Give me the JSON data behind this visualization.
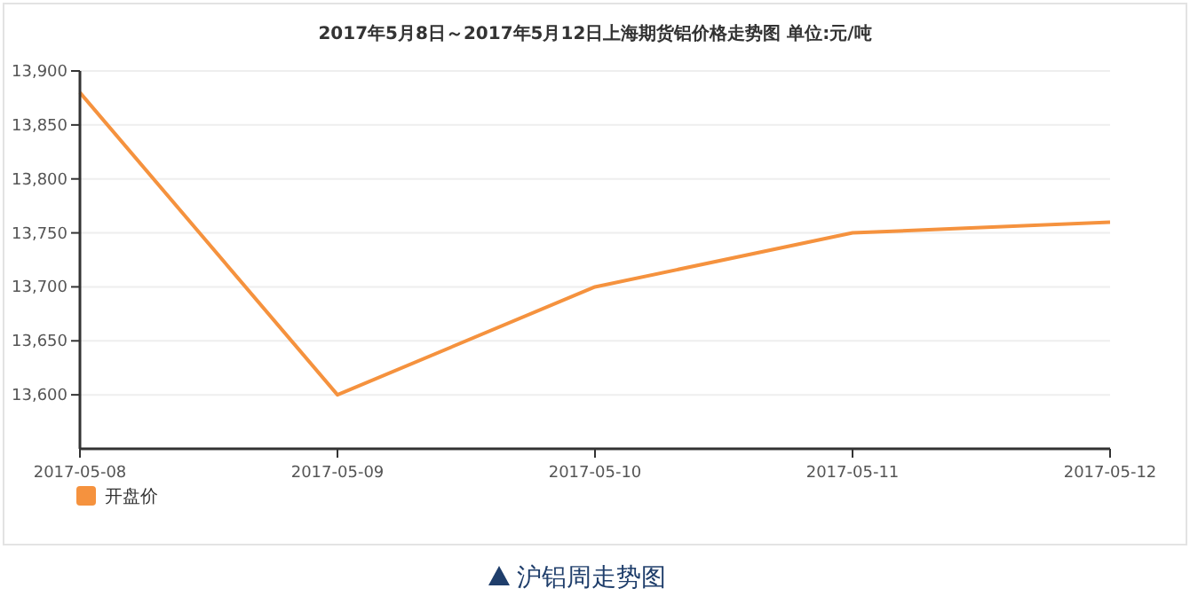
{
  "chart_data": {
    "type": "line",
    "title": "2017年5月8日～2017年5月12日上海期货铝价格走势图 单位:元/吨",
    "x": [
      "2017-05-08",
      "2017-05-09",
      "2017-05-10",
      "2017-05-11",
      "2017-05-12"
    ],
    "xlim": [
      "2017-05-08",
      "2017-05-12"
    ],
    "xticks": [
      {
        "value": "2017-05-08",
        "label": "2017-05-08"
      },
      {
        "value": "2017-05-09",
        "label": "2017-05-09"
      },
      {
        "value": "2017-05-10",
        "label": "2017-05-10"
      },
      {
        "value": "2017-05-11",
        "label": "2017-05-11"
      },
      {
        "value": "2017-05-12",
        "label": "2017-05-12"
      }
    ],
    "series": [
      {
        "name": "开盘价",
        "color": "#f5923e",
        "values": [
          13880,
          13600,
          13700,
          13750,
          13760
        ]
      }
    ],
    "ylim": [
      13550,
      13900
    ],
    "yticks": [
      {
        "value": 13600,
        "label": "13,600"
      },
      {
        "value": 13650,
        "label": "13,650"
      },
      {
        "value": 13700,
        "label": "13,700"
      },
      {
        "value": 13750,
        "label": "13,750"
      },
      {
        "value": 13800,
        "label": "13,800"
      },
      {
        "value": 13850,
        "label": "13,850"
      },
      {
        "value": 13900,
        "label": "13,900"
      }
    ],
    "grid": "y",
    "legend": "bottom left",
    "marker": "none",
    "line_style": "solid",
    "annotations": [
      "沪铝周走势图"
    ]
  }
}
